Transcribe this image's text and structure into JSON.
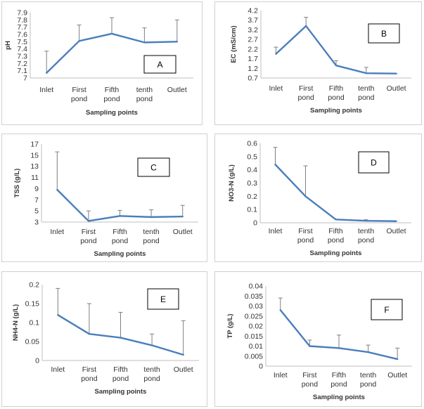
{
  "chart_data": [
    {
      "id": "A",
      "type": "line",
      "panel_label": "A",
      "categories": [
        "Inlet",
        "First pond",
        "Fifth pond",
        "tenth pond",
        "Outlet"
      ],
      "values": [
        7.07,
        7.51,
        7.61,
        7.49,
        7.5
      ],
      "error_bars": [
        0.3,
        0.22,
        0.22,
        0.2,
        0.3
      ],
      "ylabel": "pH",
      "xlabel": "Sampling points",
      "ylim": [
        7,
        7.9
      ],
      "yticks": [
        "7",
        "7.1",
        "7.2",
        "7.3",
        "7.4",
        "7.5",
        "7.6",
        "7.7",
        "7.8",
        "7.9"
      ],
      "line_color": "#4a7ebb"
    },
    {
      "id": "B",
      "type": "line",
      "panel_label": "B",
      "categories": [
        "Inlet",
        "First pond",
        "Fifth pond",
        "tenth pond",
        "Outlet"
      ],
      "values": [
        1.95,
        3.4,
        1.35,
        0.95,
        0.93
      ],
      "error_bars": [
        0.35,
        0.45,
        0.25,
        0.3,
        0.0
      ],
      "ylabel": "EC (mS/cm)",
      "xlabel": "Sampling points",
      "ylim": [
        0.7,
        4.2
      ],
      "yticks": [
        "0.7",
        "1.2",
        "1.7",
        "2.2",
        "2.7",
        "3.2",
        "3.7",
        "4.2"
      ],
      "line_color": "#4a7ebb"
    },
    {
      "id": "C",
      "type": "line",
      "panel_label": "C",
      "categories": [
        "Inlet",
        "First pond",
        "Fifth pond",
        "tenth pond",
        "Outlet"
      ],
      "values": [
        8.8,
        3.2,
        4.1,
        3.9,
        4.0
      ],
      "error_bars": [
        6.8,
        1.8,
        1.0,
        1.3,
        2.0
      ],
      "ylabel": "TSS (g/L)",
      "xlabel": "Sampling points",
      "ylim": [
        3,
        17
      ],
      "yticks": [
        "3",
        "5",
        "7",
        "9",
        "11",
        "13",
        "15",
        "17"
      ],
      "line_color": "#4a7ebb"
    },
    {
      "id": "D",
      "type": "line",
      "panel_label": "D",
      "categories": [
        "Inlet",
        "First pond",
        "Fifth pond",
        "tenth pond",
        "Outlet"
      ],
      "values": [
        0.44,
        0.2,
        0.025,
        0.015,
        0.012
      ],
      "error_bars": [
        0.13,
        0.23,
        0.0,
        0.008,
        0.0
      ],
      "ylabel": "NO3-N (g/L)",
      "xlabel": "Sampling points",
      "ylim": [
        0,
        0.6
      ],
      "yticks": [
        "0",
        "0.1",
        "0.2",
        "0.3",
        "0.4",
        "0.5",
        "0.6"
      ],
      "line_color": "#4a7ebb"
    },
    {
      "id": "E",
      "type": "line",
      "panel_label": "E",
      "categories": [
        "Inlet",
        "First pond",
        "Fifth pond",
        "tenth pond",
        "Outlet"
      ],
      "values": [
        0.12,
        0.07,
        0.06,
        0.04,
        0.015
      ],
      "error_bars": [
        0.07,
        0.08,
        0.067,
        0.03,
        0.09
      ],
      "ylabel": "NH4-N (g/L)",
      "xlabel": "Sampling points",
      "ylim": [
        0,
        0.2
      ],
      "yticks": [
        "0",
        "0.05",
        "0.1",
        "0.15",
        "0.2"
      ],
      "line_color": "#4a7ebb"
    },
    {
      "id": "F",
      "type": "line",
      "panel_label": "F",
      "categories": [
        "Inlet",
        "First pond",
        "Fifth pond",
        "tenth pond",
        "Outlet"
      ],
      "values": [
        0.028,
        0.01,
        0.009,
        0.007,
        0.0035
      ],
      "error_bars": [
        0.006,
        0.003,
        0.0065,
        0.0035,
        0.0055
      ],
      "ylabel": "TP (g/L)",
      "xlabel": "Sampling points",
      "ylim": [
        0,
        0.04
      ],
      "yticks": [
        "0",
        "0.005",
        "0.01",
        "0.015",
        "0.02",
        "0.025",
        "0.03",
        "0.035",
        "0.04"
      ],
      "line_color": "#4a7ebb"
    }
  ]
}
